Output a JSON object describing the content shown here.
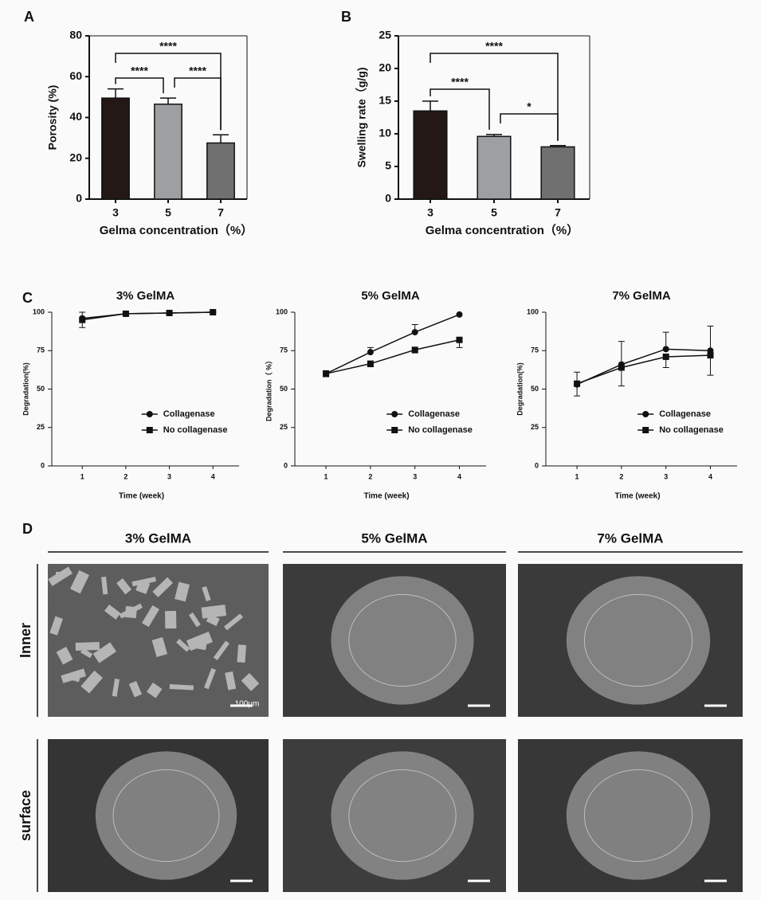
{
  "panel_labels": [
    "A",
    "B",
    "C",
    "D"
  ],
  "chart_data": [
    {
      "type": "bar",
      "ylabel": "Porosity (%)",
      "xlabel": "Gelma concentration（%）",
      "categories": [
        "3",
        "5",
        "7"
      ],
      "values": [
        49.5,
        46.5,
        27.5
      ],
      "errors": [
        4.5,
        3,
        4
      ],
      "colors": [
        "#231815",
        "#9d9fa2",
        "#707070"
      ],
      "ylim": [
        0,
        80
      ],
      "yticks": [
        0,
        20,
        40,
        60,
        80
      ],
      "annotations": [
        {
          "label": "****",
          "from": 0,
          "to": 2
        },
        {
          "label": "****",
          "from": 0,
          "to": 1
        },
        {
          "label": "****",
          "from": 1,
          "to": 2
        }
      ]
    },
    {
      "type": "bar",
      "ylabel": "Swelling rate（g/g)",
      "xlabel": "Gelma concentration（%）",
      "categories": [
        "3",
        "5",
        "7"
      ],
      "values": [
        13.5,
        9.6,
        8.0
      ],
      "errors": [
        1.5,
        0.3,
        0.2
      ],
      "colors": [
        "#231815",
        "#9d9fa2",
        "#707070"
      ],
      "ylim": [
        0,
        25
      ],
      "yticks": [
        0,
        5,
        10,
        15,
        20,
        25
      ],
      "annotations": [
        {
          "label": "****",
          "from": 0,
          "to": 2
        },
        {
          "label": "****",
          "from": 0,
          "to": 1
        },
        {
          "label": "*",
          "from": 1,
          "to": 2
        }
      ]
    },
    {
      "type": "line",
      "title": "3% GelMA",
      "ylabel": "Degradation(%)",
      "xlabel": "Time (week)",
      "x": [
        1,
        2,
        3,
        4
      ],
      "xlim": [
        0.3,
        4.6
      ],
      "xticks": [
        1,
        2,
        3,
        4
      ],
      "ylim": [
        0,
        100
      ],
      "yticks": [
        0,
        25,
        50,
        75,
        100
      ],
      "legend": "lower right",
      "series": [
        {
          "name": "Collagenase",
          "marker": "circle",
          "color": "#111111",
          "values": [
            96,
            99,
            99.5,
            100
          ],
          "errors": [
            4,
            1,
            1,
            0.5
          ]
        },
        {
          "name": "No collagenase",
          "marker": "square",
          "color": "#111111",
          "values": [
            95,
            99,
            99.5,
            100
          ],
          "errors": [
            5,
            1,
            1,
            0.5
          ]
        }
      ]
    },
    {
      "type": "line",
      "title": "5% GelMA",
      "ylabel": "Degradation（ %）",
      "xlabel": "Time (week)",
      "x": [
        1,
        2,
        3,
        4
      ],
      "xlim": [
        0.3,
        4.6
      ],
      "xticks": [
        1,
        2,
        3,
        4
      ],
      "ylim": [
        0,
        100
      ],
      "yticks": [
        0,
        25,
        50,
        75,
        100
      ],
      "legend": "lower right",
      "series": [
        {
          "name": "Collagenase",
          "marker": "circle",
          "color": "#111111",
          "values": [
            60,
            74,
            87,
            98.5
          ],
          "errors": [
            2,
            3,
            5,
            0
          ]
        },
        {
          "name": "No collagenase",
          "marker": "square",
          "color": "#111111",
          "values": [
            60,
            66.5,
            75.5,
            82
          ],
          "errors": [
            2,
            2,
            2,
            5
          ]
        }
      ]
    },
    {
      "type": "line",
      "title": "7% GelMA",
      "ylabel": "Degradation(%)",
      "xlabel": "Time (week)",
      "x": [
        1,
        2,
        3,
        4
      ],
      "xlim": [
        0.3,
        4.6
      ],
      "xticks": [
        1,
        2,
        3,
        4
      ],
      "ylim": [
        0,
        100
      ],
      "yticks": [
        0,
        25,
        50,
        75,
        100
      ],
      "legend": "lower right",
      "series": [
        {
          "name": "Collagenase",
          "marker": "circle",
          "color": "#111111",
          "values": [
            53,
            66,
            76,
            75
          ],
          "errors": [
            8,
            15,
            11,
            16
          ]
        },
        {
          "name": "No collagenase",
          "marker": "square",
          "color": "#111111",
          "values": [
            53.5,
            64,
            71,
            72
          ],
          "errors": [
            8,
            12,
            7,
            13
          ]
        }
      ]
    }
  ],
  "panel_d": {
    "columns": [
      "3% GelMA",
      "5% GelMA",
      "7% GelMA"
    ],
    "rows": [
      "Inner",
      "surface"
    ],
    "scale_bar": "100μm"
  }
}
